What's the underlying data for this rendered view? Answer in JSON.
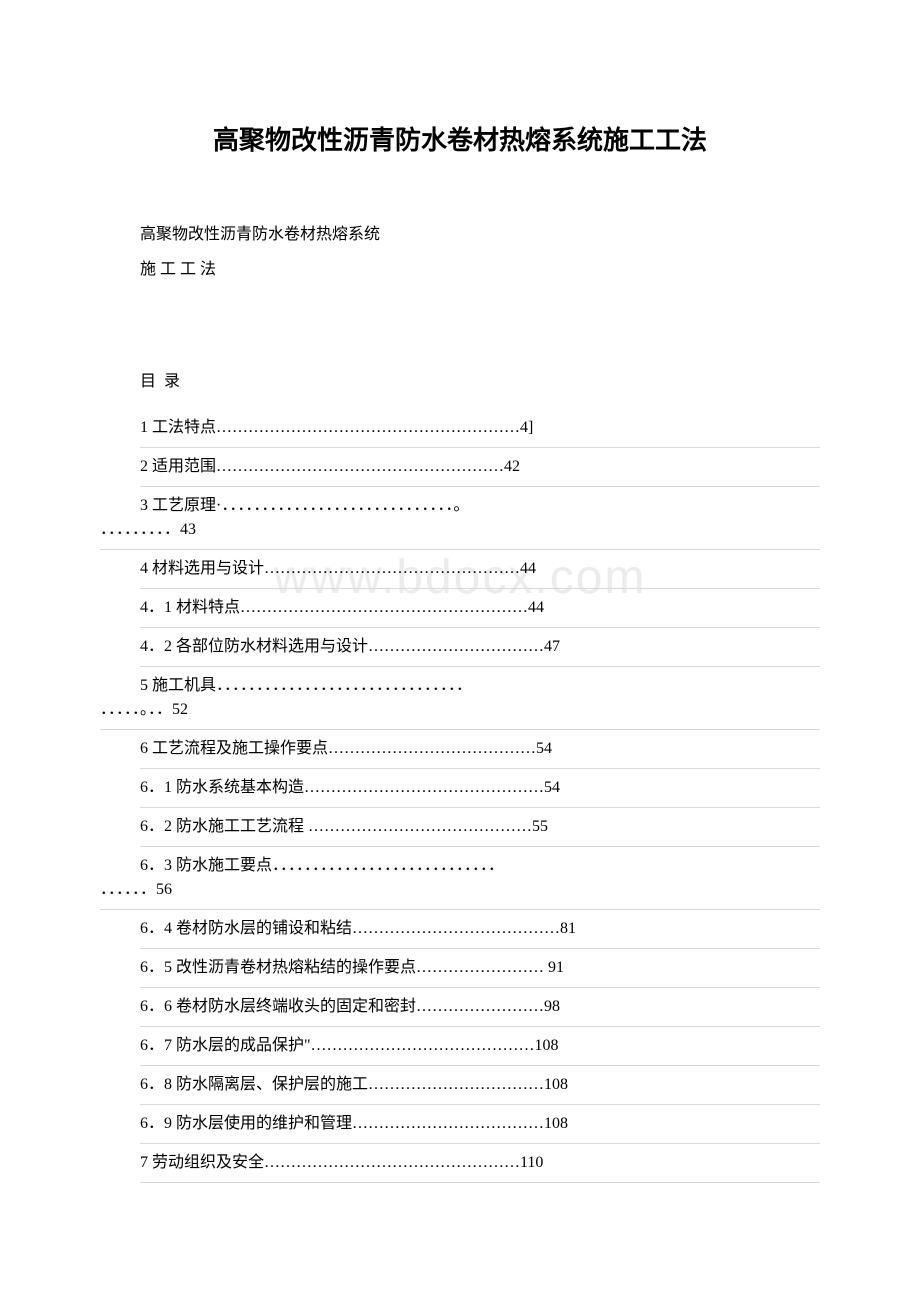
{
  "title": "高聚物改性沥青防水卷材热熔系统施工工法",
  "subtitle": {
    "line1": "高聚物改性沥青防水卷材热熔系统",
    "line2": "施 工 工 法"
  },
  "watermark": "www.bdocx.com",
  "toc": {
    "header": "目 录",
    "items": [
      {
        "text": "1 工法特点…………………………………………………4]",
        "wrapped": false
      },
      {
        "text": "2 适用范围………………………………………………42",
        "wrapped": false
      },
      {
        "line1": "3 工艺原理·．．．．．．．．．．．．．．．．．．．．．．．．．．．．．。",
        "line2": "．．．．．．．．．43",
        "wrapped": true
      },
      {
        "text": "4 材料选用与设计…………………………………………44",
        "wrapped": false
      },
      {
        "text": "4．1 材料特点………………………………………………44",
        "wrapped": false
      },
      {
        "text": "4．2 各部位防水材料选用与设计……………………………47",
        "wrapped": false
      },
      {
        "line1": "5 施工机具．．．．．．．．．．．．．．．．．．．．．．．．．．．．．．．",
        "line2": "．．．．．。．．52",
        "wrapped": true
      },
      {
        "text": "6 工艺流程及施工操作要点…………………………………54",
        "wrapped": false
      },
      {
        "text": "6．1 防水系统基本构造………………………………………54",
        "wrapped": false
      },
      {
        "text": "6．2 防水施工工艺流程 ……………………………………55",
        "wrapped": false
      },
      {
        "line1": "6．3 防水施工要点．．．．．．．．．．．．．．．．．．．．．．．．．．．．",
        "line2": "．．．．．．56",
        "wrapped": true
      },
      {
        "text": "6．4 卷材防水层的铺设和粘结…………………………………81",
        "wrapped": false
      },
      {
        "text": "6．5 改性沥青卷材热熔粘结的操作要点…………………… 91",
        "wrapped": false
      },
      {
        "text": "6．6 卷材防水层终端收头的固定和密封……………………98",
        "wrapped": false
      },
      {
        "text": "6．7 防水层的成品保护\"……………………………………108",
        "wrapped": false
      },
      {
        "text": "6．8 防水隔离层、保护层的施工……………………………108",
        "wrapped": false
      },
      {
        "text": "6．9 防水层使用的维护和管理………………………………108",
        "wrapped": false
      },
      {
        "text": "7 劳动组织及安全…………………………………………110",
        "wrapped": false
      }
    ]
  },
  "colors": {
    "background": "#ffffff",
    "text": "#000000",
    "divider": "#d8d8d8",
    "watermark": "#ececec"
  },
  "typography": {
    "title_fontsize": 26,
    "body_fontsize": 16,
    "watermark_fontsize": 48,
    "title_font": "SimHei",
    "body_font": "SimSun"
  }
}
